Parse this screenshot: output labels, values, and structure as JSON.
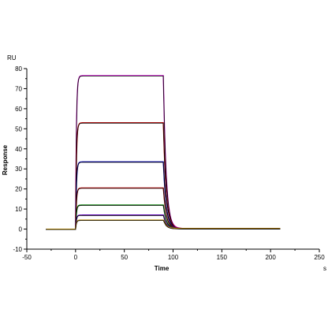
{
  "chart_data": {
    "type": "line",
    "title": "",
    "xlabel": "Time",
    "ylabel": "Response",
    "x_unit": "s",
    "y_unit": "RU",
    "xlim": [
      -50,
      250
    ],
    "ylim": [
      -10,
      80
    ],
    "x_ticks": [
      -50,
      0,
      50,
      100,
      150,
      200,
      250
    ],
    "y_ticks": [
      -10,
      0,
      10,
      20,
      30,
      40,
      50,
      60,
      70,
      80
    ],
    "association_start": 0,
    "dissociation_start": 90,
    "x_end": 210,
    "grid": false,
    "legend": "none",
    "series": [
      {
        "plateau": 76.5,
        "color": "#cc00cc"
      },
      {
        "plateau": 53.0,
        "color": "#cc0000"
      },
      {
        "plateau": 33.5,
        "color": "#0000cc"
      },
      {
        "plateau": 20.5,
        "color": "#cc0000"
      },
      {
        "plateau": 12.0,
        "color": "#008800"
      },
      {
        "plateau": 7.0,
        "color": "#6600cc"
      },
      {
        "plateau": 4.5,
        "color": "#cc9900"
      }
    ],
    "fit_color": "#000000"
  }
}
